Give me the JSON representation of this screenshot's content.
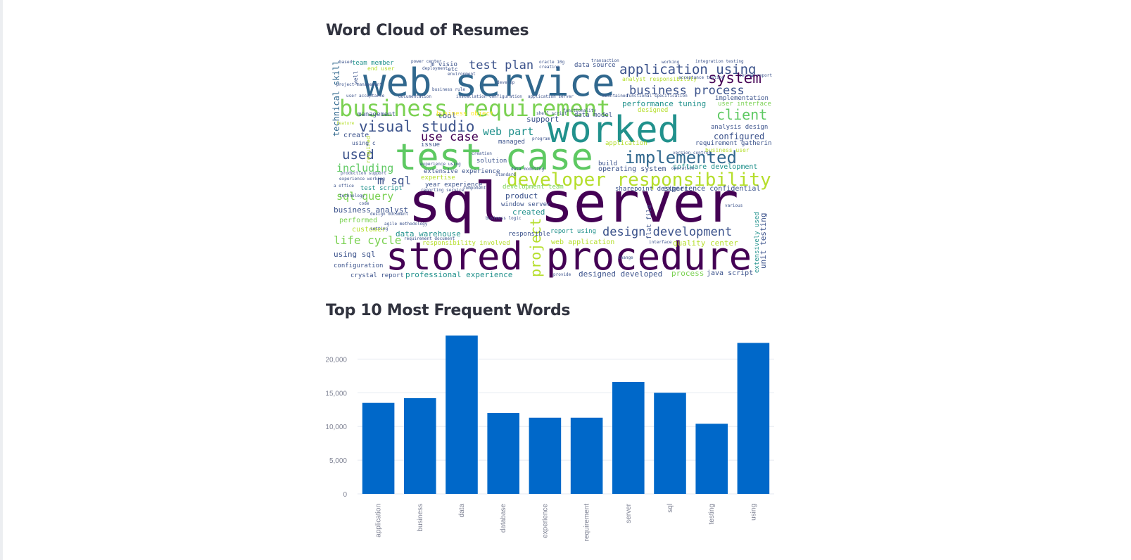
{
  "word_cloud": {
    "title": "Word Cloud of Resumes",
    "colors": [
      "#440154",
      "#3b528b",
      "#21918c",
      "#5ec962",
      "#b5de2b",
      "#fde725"
    ],
    "words": [
      {
        "text": "sql server",
        "size": 78,
        "color": "#440154"
      },
      {
        "text": "stored procedure",
        "size": 54,
        "color": "#440154"
      },
      {
        "text": "web service",
        "size": 54,
        "color": "#31688e"
      },
      {
        "text": "test case",
        "size": 52,
        "color": "#5ec962"
      },
      {
        "text": "worked",
        "size": 52,
        "color": "#21918c"
      },
      {
        "text": "business requirement",
        "size": 32,
        "color": "#7ad151"
      },
      {
        "text": "developer responsibility",
        "size": 26,
        "color": "#b5de2b"
      },
      {
        "text": "implemented",
        "size": 24,
        "color": "#31688e"
      },
      {
        "text": "design development",
        "size": 17,
        "color": "#3b528b"
      },
      {
        "text": "visual studio",
        "size": 21,
        "color": "#3b528b"
      },
      {
        "text": "use case",
        "size": 17,
        "color": "#440154"
      },
      {
        "text": "application using",
        "size": 19,
        "color": "#3b528b"
      },
      {
        "text": "business process",
        "size": 17,
        "color": "#3b528b"
      },
      {
        "text": "system",
        "size": 21,
        "color": "#440154"
      },
      {
        "text": "client",
        "size": 20,
        "color": "#5ec962"
      },
      {
        "text": "test plan",
        "size": 17,
        "color": "#3b528b"
      },
      {
        "text": "used",
        "size": 19,
        "color": "#3b528b"
      },
      {
        "text": "including",
        "size": 15,
        "color": "#5ec962"
      },
      {
        "text": "m sql",
        "size": 16,
        "color": "#3b528b"
      },
      {
        "text": "sql query",
        "size": 15,
        "color": "#7ad151"
      },
      {
        "text": "life cycle",
        "size": 16,
        "color": "#7ad151"
      },
      {
        "text": "project",
        "size": 20,
        "color": "#b5de2b"
      },
      {
        "text": "web part",
        "size": 15,
        "color": "#21918c"
      },
      {
        "text": "technical skill",
        "size": 12,
        "color": "#31688e"
      },
      {
        "text": "performance tuning",
        "size": 11,
        "color": "#21918c"
      },
      {
        "text": "software development",
        "size": 10,
        "color": "#21918c"
      },
      {
        "text": "configured",
        "size": 12,
        "color": "#3b528b"
      },
      {
        "text": "business analyst",
        "size": 11,
        "color": "#3b528b"
      },
      {
        "text": "data warehouse",
        "size": 11,
        "color": "#21918c"
      },
      {
        "text": "professional experience",
        "size": 11,
        "color": "#21918c"
      },
      {
        "text": "designed developed",
        "size": 11,
        "color": "#3b528b"
      },
      {
        "text": "quality center",
        "size": 11,
        "color": "#b5de2b"
      },
      {
        "text": "unit testing",
        "size": 11,
        "color": "#3b528b"
      },
      {
        "text": "using sql",
        "size": 11,
        "color": "#3b528b"
      },
      {
        "text": "process",
        "size": 11,
        "color": "#7ad151"
      },
      {
        "text": "java script",
        "size": 10,
        "color": "#3b528b"
      },
      {
        "text": "crystal report",
        "size": 9,
        "color": "#3b528b"
      },
      {
        "text": "configuration",
        "size": 9,
        "color": "#3b528b"
      },
      {
        "text": "customer",
        "size": 10,
        "color": "#b5de2b"
      },
      {
        "text": "performed",
        "size": 10,
        "color": "#7ad151"
      },
      {
        "text": "created",
        "size": 11,
        "color": "#21918c"
      },
      {
        "text": "web application",
        "size": 10,
        "color": "#b5de2b"
      },
      {
        "text": "responsible",
        "size": 9,
        "color": "#3b528b"
      },
      {
        "text": "report using",
        "size": 9,
        "color": "#21918c"
      },
      {
        "text": "window server",
        "size": 9,
        "color": "#3b528b"
      },
      {
        "text": "product",
        "size": 11,
        "color": "#3b528b"
      },
      {
        "text": "sharepoint designer",
        "size": 9,
        "color": "#3b528b"
      },
      {
        "text": "experience confidential",
        "size": 10,
        "color": "#3b528b"
      },
      {
        "text": "operating system",
        "size": 10,
        "color": "#3b528b"
      },
      {
        "text": "management",
        "size": 9,
        "color": "#3b528b"
      },
      {
        "text": "tool",
        "size": 11,
        "color": "#3b528b"
      },
      {
        "text": "data model",
        "size": 9,
        "color": "#3b528b"
      },
      {
        "text": "support",
        "size": 11,
        "color": "#3b528b"
      },
      {
        "text": "managed",
        "size": 9,
        "color": "#3b528b"
      },
      {
        "text": "create",
        "size": 10,
        "color": "#3b528b"
      },
      {
        "text": "issue",
        "size": 9,
        "color": "#3b528b"
      },
      {
        "text": "solution",
        "size": 9,
        "color": "#3b528b"
      },
      {
        "text": "build",
        "size": 9,
        "color": "#3b528b"
      },
      {
        "text": "expertise",
        "size": 9,
        "color": "#b5de2b"
      },
      {
        "text": "year experience",
        "size": 9,
        "color": "#3b528b"
      },
      {
        "text": "extensive experience",
        "size": 9,
        "color": "#3b528b"
      },
      {
        "text": "requirement gathering",
        "size": 9,
        "color": "#3b528b"
      },
      {
        "text": "analysis design",
        "size": 9,
        "color": "#3b528b"
      },
      {
        "text": "user interface",
        "size": 9,
        "color": "#7ad151"
      },
      {
        "text": "implementation",
        "size": 9,
        "color": "#3b528b"
      },
      {
        "text": "team member",
        "size": 9,
        "color": "#21918c"
      },
      {
        "text": "m visio",
        "size": 9,
        "color": "#3b528b"
      },
      {
        "text": "data",
        "size": 9,
        "color": "#3b528b"
      },
      {
        "text": "source",
        "size": 9,
        "color": "#3b528b"
      },
      {
        "text": "designed",
        "size": 9,
        "color": "#b5de2b"
      },
      {
        "text": "application",
        "size": 9,
        "color": "#b5de2b"
      },
      {
        "text": "business object",
        "size": 9,
        "color": "#fde725"
      },
      {
        "text": "test script",
        "size": 9,
        "color": "#21918c"
      },
      {
        "text": "development team",
        "size": 9,
        "color": "#7ad151"
      },
      {
        "text": "responsibility involved",
        "size": 9,
        "color": "#b5de2b"
      },
      {
        "text": "extensively used",
        "size": 9,
        "color": "#21918c"
      },
      {
        "text": "flat file",
        "size": 9,
        "color": "#3b528b"
      },
      {
        "text": "end user",
        "size": 8,
        "color": "#b5de2b"
      },
      {
        "text": "etc",
        "size": 8,
        "color": "#3b528b"
      },
      {
        "text": "integration testing",
        "size": 6,
        "color": "#3b528b"
      },
      {
        "text": "analyst responsibility",
        "size": 8,
        "color": "#b5de2b"
      },
      {
        "text": "well",
        "size": 8,
        "color": "#3b528b"
      },
      {
        "text": "required",
        "size": 8,
        "color": "#b5de2b"
      },
      {
        "text": "using c",
        "size": 8,
        "color": "#3b528b"
      },
      {
        "text": "business rule",
        "size": 6,
        "color": "#3b528b"
      },
      {
        "text": "user acceptance",
        "size": 6,
        "color": "#3b528b"
      },
      {
        "text": "documentation",
        "size": 6,
        "color": "#3b528b"
      },
      {
        "text": "installation configuration",
        "size": 6,
        "color": "#3b528b"
      },
      {
        "text": "application server",
        "size": 6,
        "color": "#3b528b"
      },
      {
        "text": "functional specification",
        "size": 6,
        "color": "#3b528b"
      },
      {
        "text": "shell script",
        "size": 6,
        "color": "#3b528b"
      },
      {
        "text": "business user",
        "size": 8,
        "color": "#b5de2b"
      },
      {
        "text": "production support",
        "size": 6,
        "color": "#3b528b"
      },
      {
        "text": "experience working",
        "size": 6,
        "color": "#3b528b"
      },
      {
        "text": "a office",
        "size": 6,
        "color": "#3b528b"
      },
      {
        "text": "reporting service",
        "size": 6,
        "color": "#3b528b"
      },
      {
        "text": "component",
        "size": 6,
        "color": "#3b528b"
      },
      {
        "text": "data modeling",
        "size": 6,
        "color": "#3b528b"
      },
      {
        "text": "creation",
        "size": 6,
        "color": "#3b528b"
      },
      {
        "text": "standard",
        "size": 6,
        "color": "#3b528b"
      },
      {
        "text": "requirement document",
        "size": 6,
        "color": "#3b528b"
      },
      {
        "text": "business logic",
        "size": 6,
        "color": "#3b528b"
      },
      {
        "text": "change",
        "size": 6,
        "color": "#3b528b"
      },
      {
        "text": "various",
        "size": 6,
        "color": "#3b528b"
      },
      {
        "text": "oracle 10g",
        "size": 6,
        "color": "#3b528b"
      },
      {
        "text": "transaction",
        "size": 6,
        "color": "#3b528b"
      },
      {
        "text": "based",
        "size": 6,
        "color": "#3b528b"
      },
      {
        "text": "power center",
        "size": 6,
        "color": "#3b528b"
      },
      {
        "text": "deployment",
        "size": 6,
        "color": "#3b528b"
      },
      {
        "text": "creating",
        "size": 6,
        "color": "#3b528b"
      },
      {
        "text": "maintained",
        "size": 6,
        "color": "#3b528b"
      },
      {
        "text": "acceptance testing",
        "size": 6,
        "color": "#3b528b"
      },
      {
        "text": "version control",
        "size": 6,
        "color": "#3b528b"
      },
      {
        "text": "functionality",
        "size": 6,
        "color": "#3b528b"
      },
      {
        "text": "feature",
        "size": 6,
        "color": "#b5de2b"
      },
      {
        "text": "develop",
        "size": 6,
        "color": "#3b528b"
      },
      {
        "text": "code",
        "size": 6,
        "color": "#3b528b"
      },
      {
        "text": "agile methodology",
        "size": 6,
        "color": "#3b528b"
      },
      {
        "text": "provide",
        "size": 6,
        "color": "#3b528b"
      },
      {
        "text": "interface",
        "size": 6,
        "color": "#3b528b"
      },
      {
        "text": "program",
        "size": 6,
        "color": "#3b528b"
      },
      {
        "text": "environment",
        "size": 6,
        "color": "#3b528b"
      },
      {
        "text": "technology",
        "size": 6,
        "color": "#3b528b"
      },
      {
        "text": "project management",
        "size": 6,
        "color": "#3b528b"
      },
      {
        "text": "design document",
        "size": 6,
        "color": "#3b528b"
      },
      {
        "text": "setting",
        "size": 6,
        "color": "#3b528b"
      },
      {
        "text": "operation",
        "size": 6,
        "color": "#3b528b"
      },
      {
        "text": "server reporting",
        "size": 6,
        "color": "#3b528b"
      },
      {
        "text": "working",
        "size": 6,
        "color": "#3b528b"
      },
      {
        "text": "experience using",
        "size": 6,
        "color": "#3b528b"
      }
    ]
  },
  "bar_chart": {
    "title": "Top 10 Most Frequent Words",
    "bar_color": "#0068c9",
    "grid_color": "#e6eaf1",
    "tick_color": "#808495"
  },
  "chart_data": {
    "type": "bar",
    "title": "Top 10 Most Frequent Words",
    "categories": [
      "application",
      "business",
      "data",
      "database",
      "experience",
      "requirement",
      "server",
      "sql",
      "testing",
      "using"
    ],
    "values": [
      13500,
      14200,
      23500,
      12000,
      11300,
      11300,
      16600,
      15000,
      10400,
      22400
    ],
    "xlabel": "",
    "ylabel": "",
    "ylim": [
      0,
      23800
    ],
    "yticks": [
      0,
      5000,
      10000,
      15000,
      20000
    ],
    "ytick_labels": [
      "0",
      "5,000",
      "10,000",
      "15,000",
      "20,000"
    ],
    "grid": true
  }
}
